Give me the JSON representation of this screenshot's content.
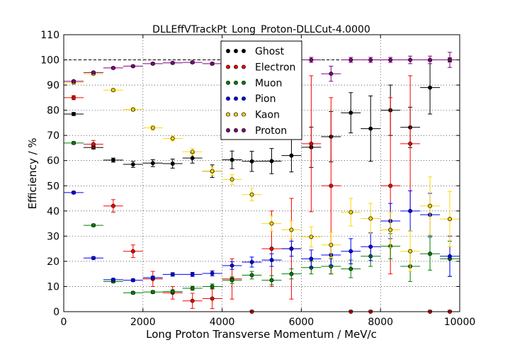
{
  "chart_data": {
    "type": "scatter",
    "title": "DLLEffVTrackPt_Long_Proton-DLLCut-4.0000",
    "xlabel": "Long Proton Transverse Momentum / MeV/c",
    "ylabel": "Efficiency / %",
    "xlim": [
      0,
      10000
    ],
    "ylim": [
      0,
      110
    ],
    "xticks": [
      0,
      2000,
      4000,
      6000,
      8000,
      10000
    ],
    "yticks": [
      0,
      10,
      20,
      30,
      40,
      50,
      60,
      70,
      80,
      90,
      100,
      110
    ],
    "grid": true,
    "legend_position": "top-center",
    "reference_line": 100,
    "x_half_width": 250,
    "x": [
      250,
      750,
      1250,
      1750,
      2250,
      2750,
      3250,
      3750,
      4250,
      4750,
      5250,
      5750,
      6250,
      6750,
      7250,
      7750,
      8250,
      8750,
      9250,
      9750
    ],
    "series": [
      {
        "name": "Ghost",
        "color": "#000000",
        "values": [
          78.5,
          65.2,
          60.2,
          58.5,
          59.0,
          58.8,
          61.0,
          55.8,
          60.3,
          59.7,
          59.8,
          62.0,
          65.3,
          69.5,
          79.0,
          72.7,
          80.0,
          73.2,
          89.0,
          100.0
        ],
        "errors": [
          0.6,
          0.6,
          0.8,
          1.2,
          1.4,
          1.8,
          2.0,
          2.5,
          3.5,
          4.0,
          5.0,
          6.5,
          8.0,
          10.0,
          8.0,
          13.0,
          10.0,
          8.0,
          10.5,
          0.8
        ]
      },
      {
        "name": "Electron",
        "color": "#ff0000",
        "values": [
          85.0,
          66.5,
          42.0,
          24.0,
          13.0,
          7.5,
          4.3,
          5.2,
          13.0,
          0.0,
          25.0,
          25.0,
          66.7,
          50.0,
          0.0,
          0.0,
          50.0,
          66.7,
          0.0,
          0.0
        ],
        "errors": [
          0.8,
          1.5,
          2.5,
          2.5,
          3.0,
          2.5,
          3.0,
          4.0,
          8.0,
          0.5,
          15.0,
          20.0,
          27.0,
          35.0,
          0.5,
          0.5,
          35.0,
          27.0,
          0.5,
          0.5
        ]
      },
      {
        "name": "Muon",
        "color": "#008000",
        "values": [
          67.0,
          34.3,
          12.0,
          7.5,
          7.8,
          8.0,
          9.3,
          10.0,
          12.5,
          14.5,
          12.5,
          15.0,
          17.5,
          18.0,
          17.0,
          22.0,
          26.0,
          18.0,
          23.0,
          21.0
        ],
        "errors": [
          0.5,
          0.5,
          0.5,
          0.5,
          0.6,
          0.7,
          0.8,
          1.0,
          1.3,
          1.5,
          1.8,
          2.0,
          2.5,
          3.0,
          3.5,
          4.0,
          5.0,
          6.0,
          6.5,
          7.0
        ]
      },
      {
        "name": "Pion",
        "color": "#0000ff",
        "values": [
          47.3,
          21.3,
          12.7,
          12.5,
          13.5,
          14.8,
          14.8,
          15.2,
          18.3,
          19.7,
          20.5,
          25.0,
          21.0,
          22.5,
          24.0,
          25.8,
          36.0,
          40.0,
          38.5,
          22.0
        ],
        "errors": [
          0.5,
          0.5,
          0.5,
          0.5,
          0.6,
          0.7,
          0.8,
          1.0,
          1.5,
          2.0,
          2.5,
          3.0,
          3.5,
          4.0,
          5.0,
          5.5,
          7.0,
          8.0,
          8.5,
          8.0
        ]
      },
      {
        "name": "Kaon",
        "color": "#ffd700",
        "values": [
          91.0,
          94.5,
          88.0,
          80.3,
          73.0,
          68.8,
          63.5,
          55.8,
          52.5,
          46.5,
          35.0,
          32.5,
          29.7,
          26.5,
          39.5,
          37.0,
          32.5,
          24.0,
          42.0,
          36.8
        ],
        "errors": [
          0.5,
          0.5,
          0.6,
          0.7,
          0.9,
          1.0,
          1.3,
          1.6,
          2.0,
          2.5,
          3.0,
          3.5,
          4.0,
          5.0,
          5.5,
          6.0,
          7.0,
          8.0,
          11.5,
          11.0
        ]
      },
      {
        "name": "Proton",
        "color": "#800080",
        "values": [
          91.5,
          95.0,
          96.8,
          97.5,
          98.5,
          98.8,
          99.0,
          98.5,
          99.5,
          99.5,
          99.8,
          99.8,
          100.0,
          94.5,
          100.0,
          100.0,
          100.0,
          100.0,
          100.0,
          100.0
        ],
        "errors": [
          0.4,
          0.4,
          0.4,
          0.4,
          0.4,
          0.4,
          0.4,
          0.5,
          0.6,
          0.7,
          0.8,
          1.0,
          1.0,
          3.0,
          1.0,
          1.0,
          1.0,
          1.5,
          1.5,
          3.0
        ]
      }
    ]
  }
}
